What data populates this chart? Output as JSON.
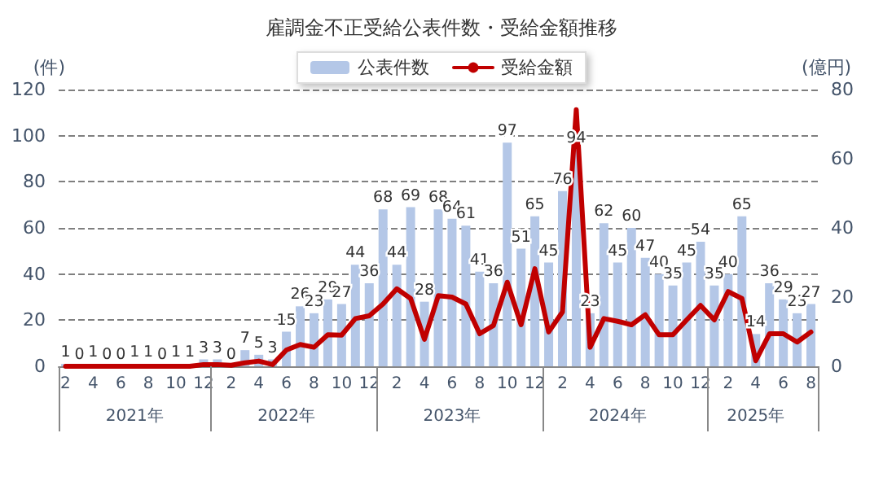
{
  "chart_data": {
    "type": "bar",
    "title": "雇調金不正受給公表件数・受給金額推移",
    "ylabel": "(件)",
    "y2label": "(億円)",
    "categories": [
      "2",
      null,
      "4",
      null,
      "6",
      null,
      "8",
      null,
      "10",
      null,
      "12",
      null,
      "2",
      null,
      "4",
      null,
      "6",
      null,
      "8",
      null,
      "10",
      null,
      "12",
      null,
      "2",
      null,
      "4",
      null,
      "6",
      null,
      "8",
      null,
      "10",
      null,
      "12",
      null,
      "2",
      null,
      "4",
      null,
      "6",
      null,
      "8",
      null,
      "10",
      null,
      "12",
      null,
      "2",
      null,
      "4",
      null,
      "6",
      null,
      "8"
    ],
    "annotations": [
      "2021年",
      "2022年",
      "2023年",
      "2024年",
      "2025年"
    ],
    "series": [
      {
        "name": "公表件数",
        "color": "#b4c7e7",
        "value_labels": [
          "1",
          "0",
          "1",
          "0",
          "0",
          "1",
          "1",
          "0",
          "1",
          "1",
          "3",
          "3",
          "0",
          "7",
          "5",
          "3",
          "15",
          "26",
          "23",
          "29",
          "27",
          "44",
          "36",
          "68",
          "44",
          "69",
          "28",
          "68",
          "64",
          "61",
          "41",
          "36",
          "97",
          "51",
          "65",
          "45",
          "76",
          "94",
          "23",
          "62",
          "45",
          "60",
          "47",
          "40",
          "35",
          "45",
          "54",
          "35",
          "40",
          "65",
          "14",
          "36",
          "29",
          "23",
          "27"
        ],
        "values": [
          1,
          0,
          1,
          0,
          0,
          1,
          1,
          0,
          1,
          1,
          3,
          3,
          0,
          7,
          5,
          3,
          15,
          26,
          23,
          29,
          27,
          44,
          36,
          68,
          44,
          69,
          28,
          68,
          64,
          61,
          41,
          36,
          97,
          51,
          65,
          45,
          76,
          94,
          23,
          62,
          45,
          60,
          47,
          40,
          35,
          45,
          54,
          35,
          40,
          65,
          14,
          36,
          29,
          23,
          27
        ]
      },
      {
        "name": "受給金額",
        "type": "line",
        "axis": "y2",
        "color": "#c00000",
        "values": [
          0,
          0,
          0,
          0,
          0,
          0,
          0,
          0,
          0,
          0,
          0.5,
          0.5,
          0.3,
          1,
          1.5,
          0.5,
          4.7,
          6.3,
          5.5,
          9.1,
          9,
          13.8,
          14.6,
          18,
          22.4,
          19.6,
          7.8,
          20.4,
          20,
          18,
          9.4,
          11.8,
          24.3,
          12,
          28.2,
          9.9,
          15.7,
          74.2,
          5.5,
          13.8,
          13,
          12,
          14.9,
          9.1,
          9.1,
          13.4,
          17.6,
          13.4,
          21.6,
          19.6,
          1.6,
          9.4,
          9.4,
          7,
          9.9
        ]
      }
    ],
    "ylim": [
      0,
      120
    ],
    "yticks": [
      0,
      20,
      40,
      60,
      80,
      100,
      120
    ],
    "y2lim": [
      0,
      80
    ],
    "y2ticks": [
      0,
      20,
      40,
      60,
      80
    ],
    "grid": "y",
    "legend": "top",
    "marker": "none",
    "line_style": "solid"
  }
}
